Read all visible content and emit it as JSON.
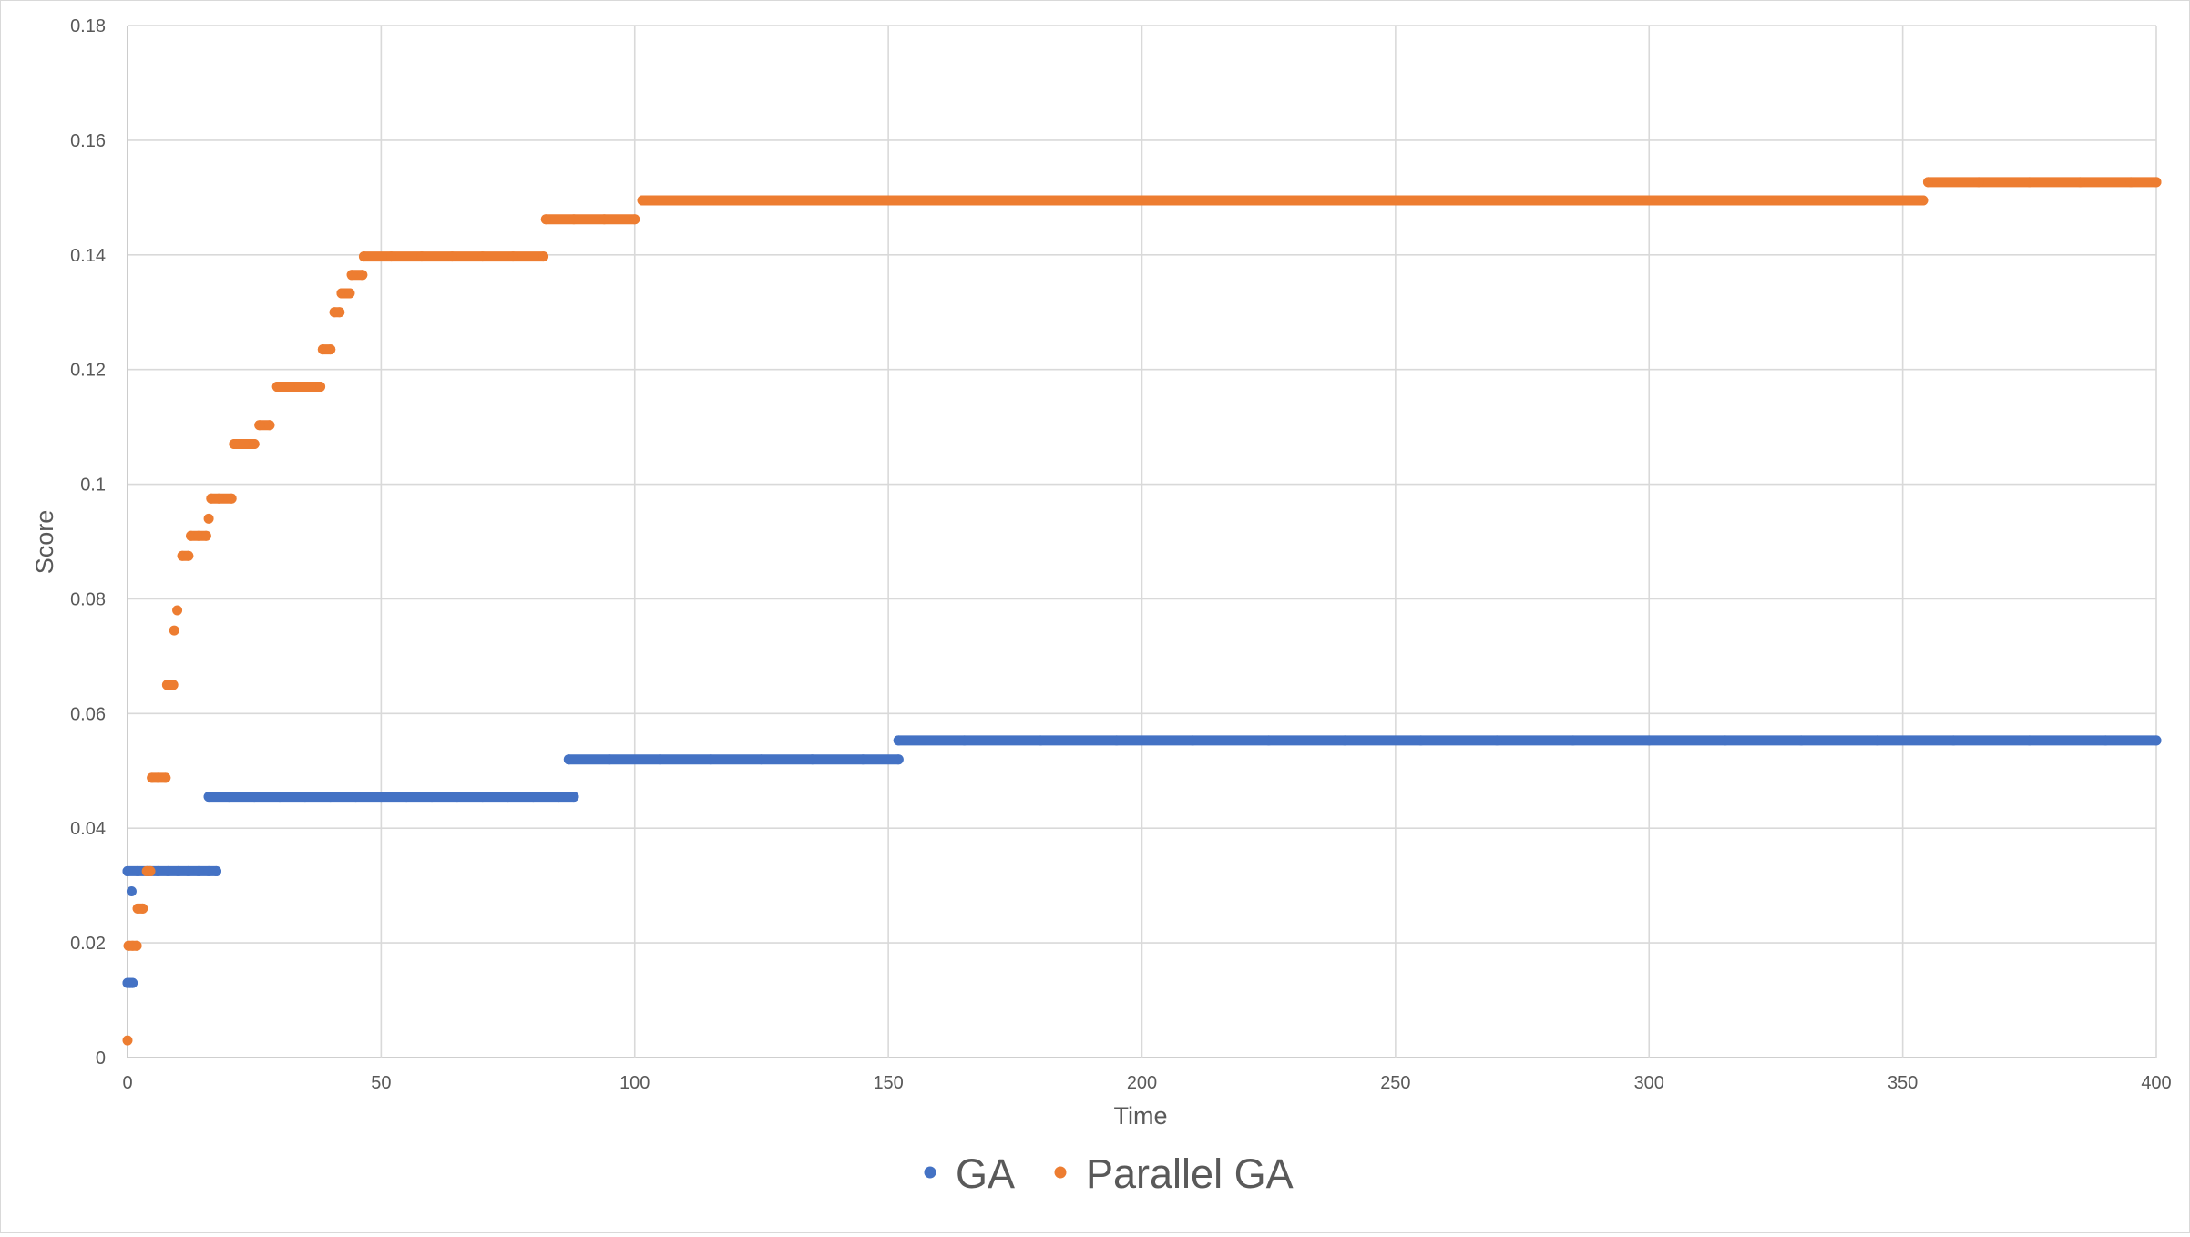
{
  "chart_data": {
    "type": "scatter",
    "title": "",
    "xlabel": "Time",
    "ylabel": "Score",
    "xlim": [
      0,
      400
    ],
    "ylim": [
      0,
      0.18
    ],
    "x_ticks": [
      "0",
      "50",
      "100",
      "150",
      "200",
      "250",
      "300",
      "350",
      "400"
    ],
    "y_ticks": [
      "0",
      "0.02",
      "0.04",
      "0.06",
      "0.08",
      "0.1",
      "0.12",
      "0.14",
      "0.16",
      "0.18"
    ],
    "grid": true,
    "legend_position": "bottom",
    "series": [
      {
        "name": "GA",
        "color": "#4472C4",
        "points": [
          [
            0,
            0.013
          ],
          [
            0.5,
            0.013
          ],
          [
            1,
            0.013
          ],
          [
            0.8,
            0.029
          ],
          [
            0,
            0.0325
          ],
          [
            2,
            0.0325
          ],
          [
            4,
            0.0325
          ],
          [
            6,
            0.0325
          ],
          [
            8,
            0.0325
          ],
          [
            10,
            0.0325
          ],
          [
            12,
            0.0325
          ],
          [
            14,
            0.0325
          ],
          [
            16,
            0.0325
          ],
          [
            17.5,
            0.0325
          ],
          [
            16,
            0.0455
          ],
          [
            20,
            0.0455
          ],
          [
            25,
            0.0455
          ],
          [
            30,
            0.0455
          ],
          [
            35,
            0.0455
          ],
          [
            40,
            0.0455
          ],
          [
            45,
            0.0455
          ],
          [
            50,
            0.0455
          ],
          [
            55,
            0.0455
          ],
          [
            60,
            0.0455
          ],
          [
            65,
            0.0455
          ],
          [
            70,
            0.0455
          ],
          [
            75,
            0.0455
          ],
          [
            80,
            0.0455
          ],
          [
            85,
            0.0455
          ],
          [
            88,
            0.0455
          ],
          [
            87,
            0.052
          ],
          [
            95,
            0.052
          ],
          [
            105,
            0.052
          ],
          [
            115,
            0.052
          ],
          [
            125,
            0.052
          ],
          [
            135,
            0.052
          ],
          [
            145,
            0.052
          ],
          [
            152,
            0.052
          ],
          [
            152,
            0.0553
          ],
          [
            165,
            0.0553
          ],
          [
            180,
            0.0553
          ],
          [
            195,
            0.0553
          ],
          [
            210,
            0.0553
          ],
          [
            225,
            0.0553
          ],
          [
            240,
            0.0553
          ],
          [
            255,
            0.0553
          ],
          [
            270,
            0.0553
          ],
          [
            285,
            0.0553
          ],
          [
            300,
            0.0553
          ],
          [
            315,
            0.0553
          ],
          [
            330,
            0.0553
          ],
          [
            345,
            0.0553
          ],
          [
            360,
            0.0553
          ],
          [
            375,
            0.0553
          ],
          [
            390,
            0.0553
          ],
          [
            400,
            0.0553
          ]
        ]
      },
      {
        "name": "Parallel GA",
        "color": "#ED7D31",
        "points": [
          [
            0,
            0.003
          ],
          [
            0.2,
            0.0195
          ],
          [
            1,
            0.0195
          ],
          [
            1.8,
            0.0195
          ],
          [
            2,
            0.026
          ],
          [
            3,
            0.026
          ],
          [
            3.8,
            0.0325
          ],
          [
            4.5,
            0.0325
          ],
          [
            4.8,
            0.0488
          ],
          [
            6,
            0.0488
          ],
          [
            7.5,
            0.0488
          ],
          [
            7.8,
            0.065
          ],
          [
            8.5,
            0.065
          ],
          [
            9,
            0.065
          ],
          [
            9.2,
            0.0745
          ],
          [
            9.8,
            0.078
          ],
          [
            10.8,
            0.0875
          ],
          [
            12,
            0.0875
          ],
          [
            12.5,
            0.091
          ],
          [
            14,
            0.091
          ],
          [
            15.5,
            0.091
          ],
          [
            16,
            0.094
          ],
          [
            16.5,
            0.0975
          ],
          [
            18,
            0.0975
          ],
          [
            20.5,
            0.0975
          ],
          [
            21,
            0.107
          ],
          [
            23,
            0.107
          ],
          [
            25,
            0.107
          ],
          [
            26,
            0.1103
          ],
          [
            28,
            0.1103
          ],
          [
            29.5,
            0.117
          ],
          [
            32,
            0.117
          ],
          [
            35,
            0.117
          ],
          [
            38,
            0.117
          ],
          [
            38.5,
            0.1235
          ],
          [
            40,
            0.1235
          ],
          [
            40.8,
            0.13
          ],
          [
            41.8,
            0.13
          ],
          [
            42.2,
            0.1333
          ],
          [
            43.8,
            0.1333
          ],
          [
            44.2,
            0.1365
          ],
          [
            46.3,
            0.1365
          ],
          [
            46.6,
            0.1397
          ],
          [
            52,
            0.1397
          ],
          [
            58,
            0.1397
          ],
          [
            64,
            0.1397
          ],
          [
            70,
            0.1397
          ],
          [
            76,
            0.1397
          ],
          [
            82,
            0.1397
          ],
          [
            82.5,
            0.1462
          ],
          [
            88,
            0.1462
          ],
          [
            94,
            0.1462
          ],
          [
            100,
            0.1462
          ],
          [
            101.5,
            0.1495
          ],
          [
            115,
            0.1495
          ],
          [
            130,
            0.1495
          ],
          [
            145,
            0.1495
          ],
          [
            160,
            0.1495
          ],
          [
            175,
            0.1495
          ],
          [
            190,
            0.1495
          ],
          [
            205,
            0.1495
          ],
          [
            220,
            0.1495
          ],
          [
            235,
            0.1495
          ],
          [
            250,
            0.1495
          ],
          [
            265,
            0.1495
          ],
          [
            280,
            0.1495
          ],
          [
            295,
            0.1495
          ],
          [
            310,
            0.1495
          ],
          [
            325,
            0.1495
          ],
          [
            340,
            0.1495
          ],
          [
            354,
            0.1495
          ],
          [
            355,
            0.1527
          ],
          [
            365,
            0.1527
          ],
          [
            375,
            0.1527
          ],
          [
            385,
            0.1527
          ],
          [
            395,
            0.1527
          ],
          [
            400,
            0.1527
          ]
        ]
      }
    ]
  }
}
